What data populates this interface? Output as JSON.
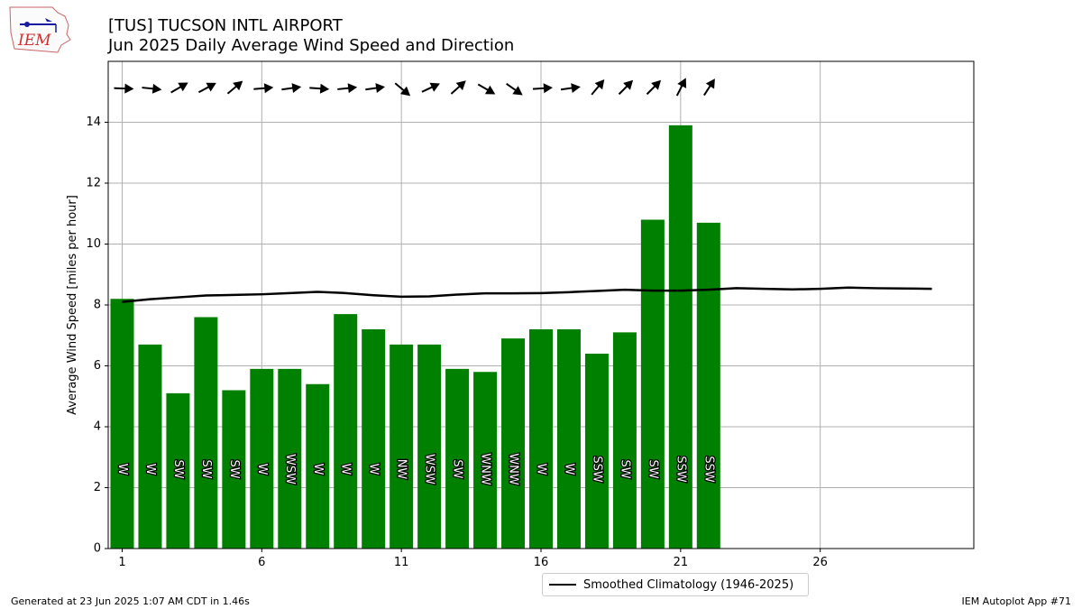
{
  "header": {
    "logo_text": "IEM",
    "title_line1": "[TUS] TUCSON INTL AIRPORT",
    "title_line2": "Jun 2025 Daily Average Wind Speed and Direction"
  },
  "footer": {
    "left": "Generated at 23 Jun 2025 1:07 AM CDT in 1.46s",
    "right": "IEM Autoplot App #71"
  },
  "legend": {
    "label": "Smoothed Climatology (1946-2025)"
  },
  "colors": {
    "bar": "#008000",
    "climatology": "#000000",
    "grid": "#b0b0b0",
    "arrow": "#000000"
  },
  "chart_data": {
    "type": "bar",
    "title": "[TUS] TUCSON INTL AIRPORT",
    "subtitle": "Jun 2025 Daily Average Wind Speed and Direction",
    "xlabel": "",
    "ylabel": "Average Wind Speed [miles per hour]",
    "xlim": [
      0.5,
      31.5
    ],
    "ylim": [
      0,
      16
    ],
    "xticks": [
      1,
      6,
      11,
      16,
      21,
      26
    ],
    "yticks": [
      0,
      2,
      4,
      6,
      8,
      10,
      12,
      14
    ],
    "grid": true,
    "legend_position": "bottom-center",
    "days": [
      1,
      2,
      3,
      4,
      5,
      6,
      7,
      8,
      9,
      10,
      11,
      12,
      13,
      14,
      15,
      16,
      17,
      18,
      19,
      20,
      21,
      22
    ],
    "speed": [
      8.2,
      6.7,
      5.1,
      7.6,
      5.2,
      5.9,
      5.9,
      5.4,
      7.7,
      7.2,
      6.7,
      6.7,
      5.9,
      5.8,
      6.9,
      7.2,
      7.2,
      6.4,
      7.1,
      10.8,
      13.9,
      10.7
    ],
    "direction_label": [
      "W",
      "W",
      "SW",
      "SW",
      "SW",
      "W",
      "WSW",
      "W",
      "W",
      "W",
      "NW",
      "WSW",
      "SW",
      "WNW",
      "WNW",
      "W",
      "W",
      "SSW",
      "SW",
      "SW",
      "SSW",
      "SSW"
    ],
    "arrow_angle_deg": [
      -2,
      -6,
      30,
      28,
      40,
      5,
      8,
      -4,
      6,
      8,
      -40,
      25,
      42,
      -30,
      -35,
      4,
      8,
      50,
      45,
      45,
      63,
      57
    ],
    "climatology": {
      "name": "Smoothed Climatology (1946-2025)",
      "x": [
        1,
        2,
        3,
        4,
        5,
        6,
        7,
        8,
        9,
        10,
        11,
        12,
        13,
        14,
        15,
        16,
        17,
        18,
        19,
        20,
        21,
        22,
        23,
        24,
        25,
        26,
        27,
        28,
        29,
        30
      ],
      "y": [
        8.1,
        8.19,
        8.25,
        8.31,
        8.33,
        8.35,
        8.39,
        8.43,
        8.39,
        8.32,
        8.27,
        8.28,
        8.34,
        8.38,
        8.38,
        8.39,
        8.42,
        8.46,
        8.5,
        8.47,
        8.47,
        8.5,
        8.55,
        8.53,
        8.51,
        8.53,
        8.57,
        8.55,
        8.54,
        8.53
      ]
    }
  }
}
